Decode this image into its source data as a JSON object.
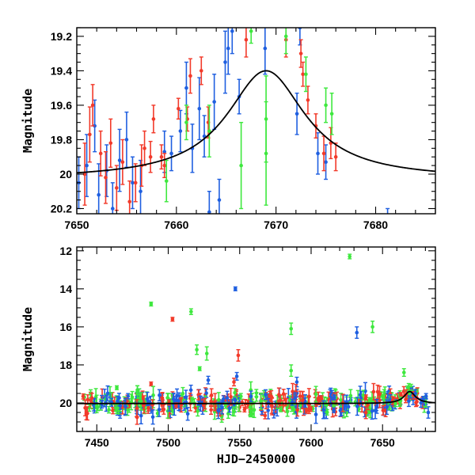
{
  "chart_data": [
    {
      "type": "scatter",
      "panel": "top",
      "title": "",
      "xlabel": "",
      "ylabel": "Magnitude",
      "xlim": [
        7650,
        7686
      ],
      "ylim": [
        20.23,
        19.15
      ],
      "y_inverted": true,
      "grid": false,
      "x_ticks": [
        "7650",
        "7660",
        "7670",
        "7680"
      ],
      "y_ticks": [
        "19.2",
        "19.4",
        "19.6",
        "19.8",
        "20",
        "20.2"
      ],
      "x_tick_values": [
        7650,
        7660,
        7670,
        7680
      ],
      "y_tick_values": [
        19.2,
        19.4,
        19.6,
        19.8,
        20.0,
        20.2
      ],
      "x_minor_step": 2,
      "y_minor_step": 0.05,
      "model_curve": {
        "type": "lorentzian",
        "peak_x": 7669,
        "peak_mag": 19.4,
        "base_mag": 20.03,
        "width": 4.8,
        "color": "#000000"
      },
      "series": [
        {
          "color": "#1f5fe0",
          "points": [
            [
              7650.2,
              20.05,
              0.15
            ],
            [
              7651.0,
              19.95,
              0.18
            ],
            [
              7651.8,
              19.72,
              0.15
            ],
            [
              7652.2,
              20.12,
              0.18
            ],
            [
              7653.0,
              19.98,
              0.15
            ],
            [
              7653.6,
              20.2,
              0.15
            ],
            [
              7654.3,
              19.92,
              0.18
            ],
            [
              7655.0,
              19.8,
              0.16
            ],
            [
              7655.6,
              20.05,
              0.15
            ],
            [
              7656.4,
              20.1,
              0.18
            ],
            [
              7658.8,
              19.87,
              0.12
            ],
            [
              7659.5,
              19.88,
              0.1
            ],
            [
              7660.4,
              19.75,
              0.12
            ],
            [
              7661.0,
              19.5,
              0.15
            ],
            [
              7661.6,
              19.85,
              0.14
            ],
            [
              7662.3,
              19.62,
              0.18
            ],
            [
              7662.8,
              19.78,
              0.12
            ],
            [
              7663.3,
              20.22,
              0.12
            ],
            [
              7663.8,
              19.58,
              0.16
            ],
            [
              7664.3,
              20.15,
              0.12
            ],
            [
              7664.9,
              19.35,
              0.18
            ],
            [
              7665.2,
              19.27,
              0.15
            ],
            [
              7665.6,
              19.17,
              0.13
            ],
            [
              7666.3,
              19.55,
              0.1
            ],
            [
              7668.9,
              19.27,
              0.15
            ],
            [
              7672.1,
              19.65,
              0.12
            ],
            [
              7672.4,
              19.15,
              0.1
            ],
            [
              7674.2,
              19.88,
              0.12
            ],
            [
              7675.0,
              19.93,
              0.1
            ],
            [
              7681.2,
              20.25,
              0.05
            ]
          ]
        },
        {
          "color": "#f23a2a",
          "points": [
            [
              7650.8,
              20.0,
              0.18
            ],
            [
              7651.3,
              19.77,
              0.16
            ],
            [
              7651.6,
              19.6,
              0.12
            ],
            [
              7652.4,
              19.88,
              0.13
            ],
            [
              7652.9,
              20.02,
              0.15
            ],
            [
              7653.4,
              19.82,
              0.14
            ],
            [
              7654.0,
              20.08,
              0.13
            ],
            [
              7654.6,
              19.93,
              0.13
            ],
            [
              7655.3,
              20.16,
              0.12
            ],
            [
              7655.9,
              20.05,
              0.11
            ],
            [
              7656.5,
              19.95,
              0.12
            ],
            [
              7656.8,
              19.85,
              0.1
            ],
            [
              7657.4,
              19.9,
              0.09
            ],
            [
              7657.7,
              19.68,
              0.08
            ],
            [
              7658.5,
              19.9,
              0.07
            ],
            [
              7658.8,
              19.95,
              0.07
            ],
            [
              7660.2,
              19.62,
              0.06
            ],
            [
              7661.1,
              19.68,
              0.07
            ],
            [
              7661.4,
              19.43,
              0.1
            ],
            [
              7662.5,
              19.4,
              0.08
            ],
            [
              7663.2,
              19.7,
              0.09
            ],
            [
              7667.0,
              19.22,
              0.1
            ],
            [
              7671.0,
              19.22,
              0.1
            ],
            [
              7672.5,
              19.3,
              0.08
            ],
            [
              7672.7,
              19.42,
              0.07
            ],
            [
              7673.2,
              19.57,
              0.08
            ],
            [
              7674.0,
              19.72,
              0.07
            ],
            [
              7674.8,
              19.88,
              0.1
            ],
            [
              7675.5,
              19.82,
              0.09
            ],
            [
              7676.0,
              19.9,
              0.08
            ]
          ]
        },
        {
          "color": "#3ee83e",
          "points": [
            [
              7659.0,
              20.04,
              0.12
            ],
            [
              7661.0,
              19.7,
              0.1
            ],
            [
              7663.3,
              19.75,
              0.15
            ],
            [
              7666.5,
              19.95,
              0.25
            ],
            [
              7667.5,
              19.17,
              0.07
            ],
            [
              7669.0,
              19.88,
              0.3
            ],
            [
              7669.0,
              19.68,
              0.25
            ],
            [
              7671.0,
              19.2,
              0.1
            ],
            [
              7673.0,
              19.42,
              0.1
            ],
            [
              7675.0,
              19.6,
              0.1
            ],
            [
              7675.6,
              19.65,
              0.12
            ]
          ]
        }
      ]
    },
    {
      "type": "scatter",
      "panel": "bottom",
      "title": "",
      "xlabel": "HJD−2450000",
      "ylabel": "Magnitude",
      "xlim": [
        7436,
        7687
      ],
      "ylim": [
        21.5,
        11.8
      ],
      "y_inverted": true,
      "grid": false,
      "x_ticks": [
        "7450",
        "7500",
        "7550",
        "7600",
        "7650"
      ],
      "y_ticks": [
        "12",
        "14",
        "16",
        "18",
        "20"
      ],
      "x_tick_values": [
        7450,
        7500,
        7550,
        7600,
        7650
      ],
      "y_tick_values": [
        12,
        14,
        16,
        18,
        20
      ],
      "x_minor_step": 10,
      "y_minor_step": 0.5,
      "model_curve": {
        "type": "lorentzian",
        "peak_x": 7669,
        "peak_mag": 19.4,
        "base_mag": 20.03,
        "width": 4.8,
        "color": "#000000"
      },
      "baseline_mag": 20.0,
      "series": [
        {
          "color": "#1f5fe0",
          "outliers": [
            [
              7547.0,
              14.0,
              0.1
            ],
            [
              7632.0,
              16.3,
              0.3
            ],
            [
              7528.0,
              18.8,
              0.2
            ],
            [
              7548.0,
              18.6,
              0.2
            ],
            [
              7590.0,
              18.9,
              0.25
            ],
            [
              7682.0,
              20.5,
              0.3
            ]
          ]
        },
        {
          "color": "#f23a2a",
          "outliers": [
            [
              7503.0,
              15.6,
              0.1
            ],
            [
              7549.0,
              17.5,
              0.3
            ],
            [
              7546.0,
              18.9,
              0.2
            ],
            [
              7488.0,
              19.0,
              0.1
            ]
          ]
        },
        {
          "color": "#3ee83e",
          "outliers": [
            [
              7627.0,
              12.3,
              0.12
            ],
            [
              7488.0,
              14.8,
              0.1
            ],
            [
              7516.0,
              15.2,
              0.15
            ],
            [
              7586.0,
              16.1,
              0.3
            ],
            [
              7643.0,
              16.0,
              0.3
            ],
            [
              7520.0,
              17.2,
              0.25
            ],
            [
              7527.0,
              17.4,
              0.35
            ],
            [
              7522.0,
              18.2,
              0.1
            ],
            [
              7586.0,
              18.3,
              0.3
            ],
            [
              7464.0,
              19.2,
              0.1
            ],
            [
              7665.0,
              18.4,
              0.2
            ]
          ]
        }
      ]
    }
  ]
}
